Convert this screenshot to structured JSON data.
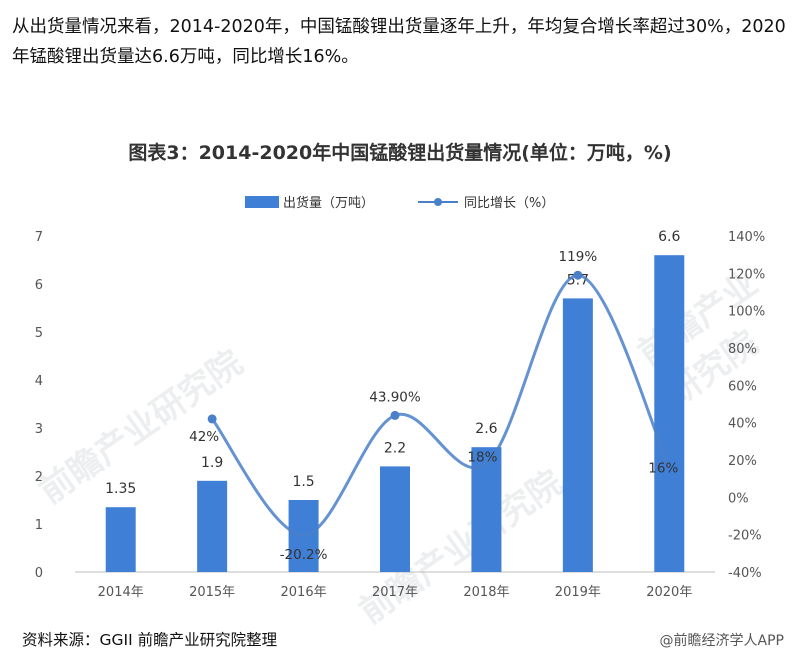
{
  "intro_text": "从出货量情况来看，2014-2020年，中国锰酸锂出货量逐年上升，年均复合增长率超过30%，2020年锰酸锂出货量达6.6万吨，同比增长16%。",
  "source_text": "资料来源：GGII 前瞻产业研究院整理",
  "credit_text": "@前瞻经济学人APP",
  "watermark_text": "前瞻产业研究院",
  "colors": {
    "bar": "#3f7fd6",
    "line": "#4a7fc9",
    "axis": "#bdbdbd"
  },
  "chart_data": {
    "type": "bar",
    "title": "图表3：2014-2020年中国锰酸锂出货量情况(单位：万吨，%)",
    "categories": [
      "2014年",
      "2015年",
      "2016年",
      "2017年",
      "2018年",
      "2019年",
      "2020年"
    ],
    "series": [
      {
        "name": "出货量（万吨）",
        "type": "bar",
        "axis": "left",
        "values": [
          1.35,
          1.9,
          1.5,
          2.2,
          2.6,
          5.7,
          6.6
        ],
        "labels": [
          "1.35",
          "1.9",
          "1.5",
          "2.2",
          "2.6",
          "5.7",
          "6.6"
        ]
      },
      {
        "name": "同比增长（%）",
        "type": "line",
        "axis": "right",
        "values": [
          null,
          42,
          -20.2,
          43.9,
          18,
          119,
          16
        ],
        "labels": [
          "",
          "42%",
          "-20.2%",
          "43.90%",
          "18%",
          "119%",
          "16%"
        ]
      }
    ],
    "ylim_left": [
      0,
      7
    ],
    "yticks_left": [
      "0",
      "1",
      "2",
      "3",
      "4",
      "5",
      "6",
      "7"
    ],
    "ylim_right": [
      -40,
      140
    ],
    "yticks_right": [
      "-40%",
      "-20%",
      "0%",
      "20%",
      "40%",
      "60%",
      "80%",
      "100%",
      "120%",
      "140%"
    ],
    "legend_position": "top",
    "grid": false
  }
}
